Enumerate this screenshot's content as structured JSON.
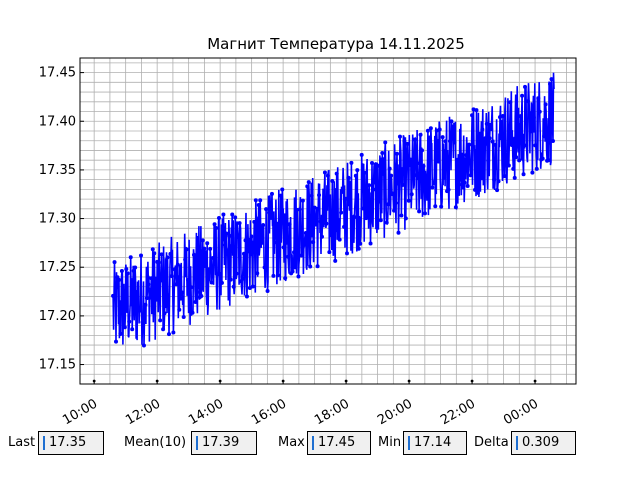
{
  "chart_data": {
    "type": "line",
    "title": "Магнит Температура 14.11.2025",
    "xlabel": "",
    "ylabel": "",
    "x_tick_labels": [
      "10:00",
      "12:00",
      "14:00",
      "16:00",
      "18:00",
      "20:00",
      "22:00",
      "00:00"
    ],
    "x_tick_hours": [
      10,
      12,
      14,
      16,
      18,
      20,
      22,
      24
    ],
    "y_tick_labels": [
      "17.15",
      "17.20",
      "17.25",
      "17.30",
      "17.35",
      "17.40",
      "17.45"
    ],
    "y_ticks": [
      17.15,
      17.2,
      17.25,
      17.3,
      17.35,
      17.4,
      17.45
    ],
    "xlim_hours": [
      9.55,
      25.3
    ],
    "ylim": [
      17.13,
      17.465
    ],
    "grid": true,
    "series": [
      {
        "color": "#0000ff",
        "x_start_hour": 10.6,
        "x_end_hour": 24.6,
        "trend_start": 17.205,
        "trend_end": 17.405,
        "noise_amplitude": 0.05,
        "n_points": 900,
        "min": 17.14,
        "max": 17.45
      }
    ]
  },
  "stats": {
    "last_label": "Last",
    "last_value": "17.35",
    "mean_label": "Mean(10)",
    "mean_value": "17.39",
    "max_label": "Max",
    "max_value": "17.45",
    "min_label": "Min",
    "min_value": "17.14",
    "delta_label": "Delta",
    "delta_value": "0.309"
  }
}
